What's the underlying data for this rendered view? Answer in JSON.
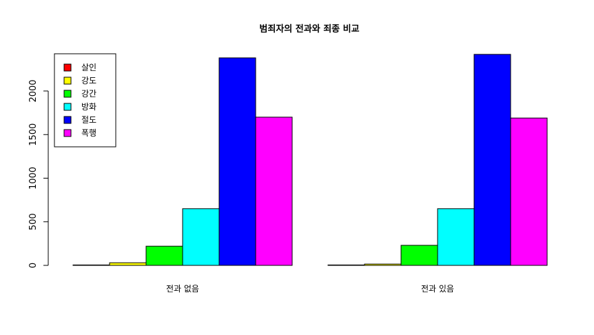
{
  "chart_data": {
    "type": "bar",
    "title": "범죄자의 전과와 죄종 비교",
    "xlabel": "",
    "ylabel": "",
    "categories": [
      "전과 없음",
      "전과 있음"
    ],
    "ylim": [
      0,
      2400
    ],
    "yticks": [
      0,
      500,
      1000,
      1500,
      2000
    ],
    "ytick_labels": [
      "0",
      "500",
      "1000",
      "1500",
      "2000"
    ],
    "legend_position": "top-left",
    "series": [
      {
        "name": "살인",
        "color": "#FF0000",
        "values": [
          5,
          5
        ]
      },
      {
        "name": "강도",
        "color": "#FFFF00",
        "values": [
          30,
          15
        ]
      },
      {
        "name": "강간",
        "color": "#00FF00",
        "values": [
          220,
          230
        ]
      },
      {
        "name": "방화",
        "color": "#00FFFF",
        "values": [
          650,
          650
        ]
      },
      {
        "name": "절도",
        "color": "#0000FF",
        "values": [
          2380,
          2420
        ]
      },
      {
        "name": "폭행",
        "color": "#FF00FF",
        "values": [
          1700,
          1690
        ]
      }
    ]
  }
}
